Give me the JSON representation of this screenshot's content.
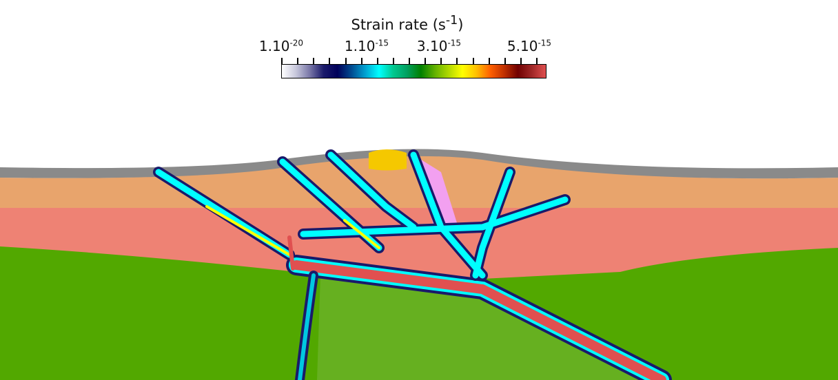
{
  "colorbar": {
    "title": "Strain rate (s",
    "title_sup": "-1",
    "title_end": ")",
    "labels": [
      {
        "base": "1.10",
        "exp": "-20"
      },
      {
        "base": "1.10",
        "exp": "-15"
      },
      {
        "base": "3.10",
        "exp": "-15"
      },
      {
        "base": "5.10",
        "exp": "-15"
      }
    ],
    "tick_count": 17,
    "colors": [
      "#ffffff",
      "#c8c8dc",
      "#7a78a8",
      "#1a1a6a",
      "#00005a",
      "#004a90",
      "#00a0d0",
      "#00ffff",
      "#00c890",
      "#00a060",
      "#008000",
      "#60b000",
      "#b0d800",
      "#ffff00",
      "#ffc000",
      "#ff6000",
      "#c03000",
      "#700000",
      "#a02828",
      "#e05050"
    ]
  },
  "materials": {
    "surface": "#8a8a8a",
    "upper_crust": "#e8a46c",
    "lower_crust": "#ee8274",
    "mantle": "#52a800",
    "slab_mantle": "#66b020",
    "sediment": "#f5c800",
    "pink": "#f2a0f0"
  }
}
